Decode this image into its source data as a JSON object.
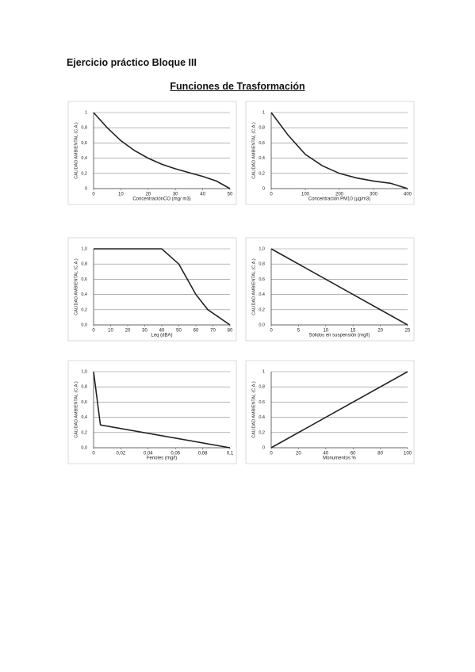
{
  "title": "Ejercicio práctico Bloque III",
  "subtitle": "Funciones de Trasformación",
  "chart_data": [
    {
      "type": "line",
      "y_label": "CALIDAD AMBIENTAL (C.A.)",
      "x_label": "ConcentraciónCO (mg/ m3)",
      "x": [
        0,
        5,
        10,
        15,
        20,
        25,
        30,
        35,
        40,
        45,
        50
      ],
      "values": [
        1,
        0.8,
        0.63,
        0.5,
        0.4,
        0.32,
        0.26,
        0.21,
        0.16,
        0.1,
        0
      ],
      "color": "#222",
      "xlim": [
        0,
        50
      ],
      "ylim": [
        0,
        1
      ],
      "xticks": [
        0,
        10,
        20,
        30,
        40,
        50
      ],
      "yticks": [
        0,
        {
          "value": 0.2,
          "label": "0,2"
        },
        {
          "value": 0.4,
          "label": "0,4"
        },
        {
          "value": 0.6,
          "label": "0,6"
        },
        {
          "value": 0.8,
          "label": "0,8"
        },
        1
      ],
      "grid": true
    },
    {
      "type": "line",
      "y_label": "CALIDAD AMBIENTAL (C.A.)",
      "x_label": "Concentración PM10 (µg/m3)",
      "x": [
        0,
        50,
        100,
        150,
        200,
        250,
        300,
        350,
        400
      ],
      "values": [
        1,
        0.7,
        0.45,
        0.3,
        0.2,
        0.14,
        0.1,
        0.07,
        0
      ],
      "color": "#222",
      "xlim": [
        0,
        400
      ],
      "ylim": [
        0,
        1
      ],
      "xticks": [
        0,
        100,
        200,
        300,
        400
      ],
      "yticks": [
        0,
        {
          "value": 0.2,
          "label": "0,2"
        },
        {
          "value": 0.4,
          "label": "0,4"
        },
        {
          "value": 0.6,
          "label": "0,6"
        },
        {
          "value": 0.8,
          "label": "0,8"
        },
        1
      ],
      "grid": true
    },
    {
      "type": "line",
      "y_label": "CALIDAD AMBIENTAL (C.A.)",
      "x_label": "Leq (dBA)",
      "x": [
        0,
        40,
        50,
        55,
        60,
        67,
        80
      ],
      "values": [
        1,
        1,
        0.8,
        0.6,
        0.4,
        0.2,
        0
      ],
      "color": "#222",
      "xlim": [
        0,
        80
      ],
      "ylim": [
        0,
        1
      ],
      "xticks": [
        0,
        10,
        20,
        30,
        40,
        50,
        60,
        70,
        80
      ],
      "yticks": [
        {
          "value": 0,
          "label": "0,0"
        },
        {
          "value": 0.2,
          "label": "0,2"
        },
        {
          "value": 0.4,
          "label": "0,4"
        },
        {
          "value": 0.6,
          "label": "0,6"
        },
        {
          "value": 0.8,
          "label": "0,8"
        },
        {
          "value": 1,
          "label": "1,0"
        }
      ],
      "grid": true
    },
    {
      "type": "line",
      "y_label": "CALIDAD AMBIENTAL (C.A.)",
      "x_label": "Sólidos en suspensión (mg/l)",
      "x": [
        0,
        25
      ],
      "values": [
        1,
        0
      ],
      "color": "#222",
      "xlim": [
        0,
        25
      ],
      "ylim": [
        0,
        1
      ],
      "xticks": [
        0,
        5,
        10,
        15,
        20,
        25
      ],
      "yticks": [
        {
          "value": 0,
          "label": "0,0"
        },
        {
          "value": 0.2,
          "label": "0,2"
        },
        {
          "value": 0.4,
          "label": "0,4"
        },
        {
          "value": 0.6,
          "label": "0,6"
        },
        {
          "value": 0.8,
          "label": "0,8"
        },
        {
          "value": 1,
          "label": "1,0"
        }
      ],
      "grid": true
    },
    {
      "type": "line",
      "y_label": "CALIDAD AMBIENTAL (C.A.)",
      "x_label": "Fenoles (mg/l)",
      "x": [
        0,
        0.005,
        0.1
      ],
      "values": [
        1,
        0.3,
        0
      ],
      "color": "#222",
      "xlim": [
        0,
        0.1
      ],
      "ylim": [
        0,
        1
      ],
      "xticks": [
        0,
        {
          "value": 0.02,
          "label": "0,02"
        },
        {
          "value": 0.04,
          "label": "0,04"
        },
        {
          "value": 0.06,
          "label": "0,06"
        },
        {
          "value": 0.08,
          "label": "0,08"
        },
        {
          "value": 0.1,
          "label": "0,1"
        }
      ],
      "yticks": [
        {
          "value": 0,
          "label": "0,0"
        },
        {
          "value": 0.2,
          "label": "0,2"
        },
        {
          "value": 0.4,
          "label": "0,4"
        },
        {
          "value": 0.6,
          "label": "0,6"
        },
        {
          "value": 0.8,
          "label": "0,8"
        },
        {
          "value": 1,
          "label": "1,0"
        }
      ],
      "grid": true
    },
    {
      "type": "line",
      "y_label": "CALIDAD AMBIENTAL (C.A.)",
      "x_label": "Monumentos %",
      "x": [
        0,
        100
      ],
      "values": [
        0,
        1
      ],
      "color": "#222",
      "xlim": [
        0,
        100
      ],
      "ylim": [
        0,
        1
      ],
      "xticks": [
        0,
        20,
        40,
        60,
        80,
        100
      ],
      "yticks": [
        0,
        {
          "value": 0.2,
          "label": "0,2"
        },
        {
          "value": 0.4,
          "label": "0,4"
        },
        {
          "value": 0.6,
          "label": "0,6"
        },
        {
          "value": 0.8,
          "label": "0,8"
        },
        1
      ],
      "grid": true
    }
  ]
}
